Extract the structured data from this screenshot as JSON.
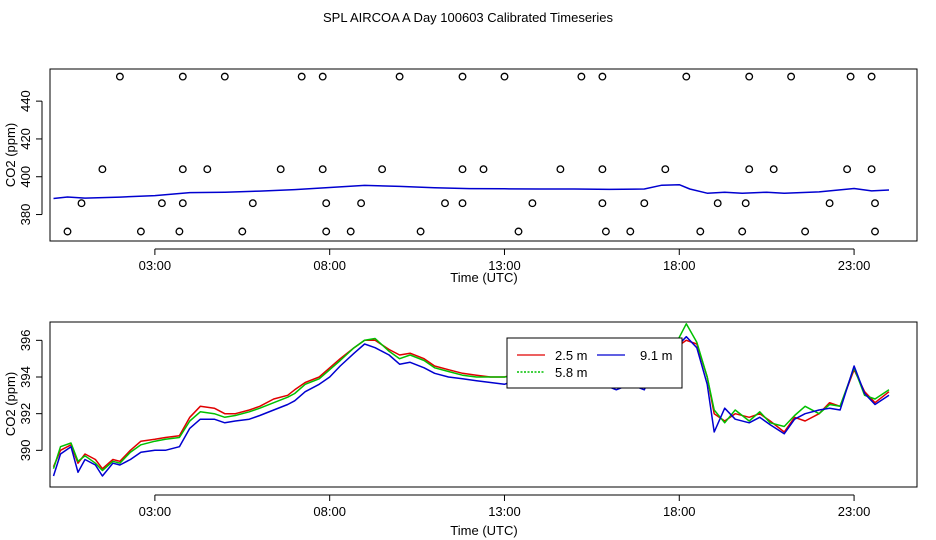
{
  "title": "SPL AIRCOA A  Day 100603  Calibrated Timeseries",
  "colors": {
    "red": "#e00000",
    "green": "#00c000",
    "blue": "#0000d0",
    "axis": "#000000"
  },
  "chart_data": [
    {
      "type": "line",
      "xlabel": "Time (UTC)",
      "ylabel": "CO2 (ppm)",
      "xlim": [
        0.0,
        24.8
      ],
      "ylim": [
        366,
        457
      ],
      "x_ticks": [
        3,
        8,
        13,
        18,
        23
      ],
      "x_tick_labels": [
        "03:00",
        "08:00",
        "13:00",
        "18:00",
        "23:00"
      ],
      "y_ticks": [
        380,
        400,
        420,
        440
      ],
      "y_tick_labels": [
        "380",
        "400",
        "420",
        "440"
      ],
      "series": [
        {
          "color": "blue",
          "x": [
            0.1,
            0.5,
            1.0,
            2.0,
            3.0,
            4.0,
            5.0,
            6.0,
            7.0,
            8.0,
            9.0,
            10.0,
            11.0,
            12.0,
            13.0,
            14.0,
            15.0,
            16.0,
            17.0,
            17.5,
            18.0,
            18.3,
            18.8,
            19.3,
            19.8,
            20.5,
            21.0,
            22.0,
            23.0,
            23.5,
            24.0
          ],
          "y": [
            388.5,
            389.3,
            388.7,
            389.2,
            390.0,
            391.6,
            391.8,
            392.4,
            393.2,
            394.3,
            395.4,
            394.9,
            394.2,
            393.7,
            393.6,
            393.5,
            393.5,
            393.3,
            393.5,
            395.5,
            395.8,
            393.5,
            391.3,
            391.8,
            391.3,
            391.8,
            391.3,
            392.0,
            393.8,
            392.5,
            393.0
          ]
        }
      ],
      "markers": {
        "symbol": "open-circle",
        "x": [
          2.0,
          3.8,
          5.0,
          7.2,
          7.8,
          10.0,
          11.8,
          13.0,
          15.2,
          15.8,
          18.2,
          20.0,
          21.2,
          22.9,
          23.5,
          1.5,
          3.8,
          4.5,
          6.6,
          7.8,
          9.5,
          11.8,
          12.4,
          14.6,
          15.8,
          17.6,
          20.0,
          20.7,
          22.8,
          23.5,
          0.9,
          3.2,
          3.8,
          5.8,
          7.9,
          8.9,
          11.3,
          11.8,
          13.8,
          15.8,
          17.0,
          19.1,
          19.9,
          22.3,
          23.6,
          0.5,
          2.6,
          3.7,
          5.5,
          7.9,
          8.6,
          10.6,
          13.4,
          15.9,
          16.6,
          18.6,
          19.8,
          21.6,
          23.6
        ],
        "y": [
          453,
          453,
          453,
          453,
          453,
          453,
          453,
          453,
          453,
          453,
          453,
          453,
          453,
          453,
          453,
          404,
          404,
          404,
          404,
          404,
          404,
          404,
          404,
          404,
          404,
          404,
          404,
          404,
          404,
          404,
          386,
          386,
          386,
          386,
          386,
          386,
          386,
          386,
          386,
          386,
          386,
          386,
          386,
          386,
          386,
          371,
          371,
          371,
          371,
          371,
          371,
          371,
          371,
          371,
          371,
          371,
          371,
          371,
          371
        ]
      }
    },
    {
      "type": "line",
      "xlabel": "Time (UTC)",
      "ylabel": "CO2 (ppm)",
      "xlim": [
        0.0,
        24.8
      ],
      "ylim": [
        388.0,
        397.0
      ],
      "x_ticks": [
        3,
        8,
        13,
        18,
        23
      ],
      "x_tick_labels": [
        "03:00",
        "08:00",
        "13:00",
        "18:00",
        "23:00"
      ],
      "y_ticks": [
        390,
        392,
        394,
        396
      ],
      "y_tick_labels": [
        "390",
        "392",
        "394",
        "396"
      ],
      "legend": {
        "position": "top-right-of-center",
        "entries": [
          {
            "label": "2.5 m",
            "color": "red",
            "dash": "solid"
          },
          {
            "label": "9.1 m",
            "color": "blue",
            "dash": "solid"
          },
          {
            "label": "5.8 m",
            "color": "green",
            "dash": "dotted"
          }
        ]
      },
      "series": [
        {
          "name": "2.5 m",
          "color": "red",
          "x": [
            0.1,
            0.3,
            0.6,
            0.8,
            1.0,
            1.3,
            1.5,
            1.8,
            2.0,
            2.3,
            2.6,
            3.0,
            3.3,
            3.7,
            4.0,
            4.3,
            4.7,
            5.0,
            5.3,
            5.7,
            6.0,
            6.4,
            6.8,
            7.0,
            7.3,
            7.7,
            8.0,
            8.3,
            8.7,
            9.0,
            9.3,
            9.7,
            10.0,
            10.3,
            10.7,
            11.0,
            11.4,
            11.8,
            12.2,
            12.6,
            13.0,
            13.4,
            13.8,
            14.2,
            14.6,
            15.0,
            15.4,
            15.8,
            16.2,
            16.6,
            17.0,
            17.3,
            17.6,
            17.9,
            18.2,
            18.5,
            18.8,
            19.0,
            19.3,
            19.6,
            20.0,
            20.3,
            20.6,
            21.0,
            21.3,
            21.6,
            22.0,
            22.3,
            22.6,
            23.0,
            23.3,
            23.6,
            24.0
          ],
          "y": [
            389.1,
            390.0,
            390.3,
            389.3,
            389.8,
            389.5,
            389.0,
            389.5,
            389.4,
            390.0,
            390.5,
            390.6,
            390.7,
            390.8,
            391.8,
            392.4,
            392.3,
            392.0,
            392.0,
            392.2,
            392.4,
            392.8,
            393.0,
            393.3,
            393.7,
            394.0,
            394.5,
            395.0,
            395.6,
            396.0,
            396.0,
            395.5,
            395.2,
            395.3,
            395.0,
            394.6,
            394.4,
            394.2,
            394.1,
            394.0,
            394.0,
            394.2,
            393.9,
            393.8,
            393.7,
            393.8,
            393.6,
            393.6,
            393.5,
            393.7,
            393.6,
            395.0,
            395.3,
            395.6,
            396.0,
            395.8,
            394.0,
            392.0,
            391.6,
            392.0,
            391.8,
            392.0,
            391.6,
            391.0,
            391.8,
            391.6,
            392.0,
            392.6,
            392.4,
            394.4,
            393.2,
            392.6,
            393.2
          ]
        },
        {
          "name": "5.8 m",
          "color": "green",
          "x": [
            0.1,
            0.3,
            0.6,
            0.8,
            1.0,
            1.3,
            1.5,
            1.8,
            2.0,
            2.3,
            2.6,
            3.0,
            3.3,
            3.7,
            4.0,
            4.3,
            4.7,
            5.0,
            5.3,
            5.7,
            6.0,
            6.4,
            6.8,
            7.0,
            7.3,
            7.7,
            8.0,
            8.3,
            8.7,
            9.0,
            9.3,
            9.7,
            10.0,
            10.3,
            10.7,
            11.0,
            11.4,
            11.8,
            12.2,
            12.6,
            13.0,
            13.4,
            13.8,
            14.2,
            14.6,
            15.0,
            15.4,
            15.8,
            16.2,
            16.6,
            17.0,
            17.3,
            17.6,
            17.9,
            18.2,
            18.5,
            18.8,
            19.0,
            19.3,
            19.6,
            20.0,
            20.3,
            20.6,
            21.0,
            21.3,
            21.6,
            22.0,
            22.3,
            22.6,
            23.0,
            23.3,
            23.6,
            24.0
          ],
          "y": [
            389.0,
            390.2,
            390.4,
            389.4,
            389.7,
            389.3,
            388.9,
            389.4,
            389.3,
            389.9,
            390.3,
            390.5,
            390.6,
            390.7,
            391.6,
            392.1,
            392.0,
            391.8,
            391.9,
            392.1,
            392.3,
            392.6,
            392.9,
            393.1,
            393.6,
            393.9,
            394.4,
            394.9,
            395.6,
            396.0,
            396.1,
            395.4,
            395.0,
            395.2,
            394.9,
            394.5,
            394.3,
            394.1,
            394.0,
            394.0,
            394.0,
            394.1,
            393.8,
            393.7,
            393.6,
            393.7,
            393.6,
            393.7,
            393.5,
            393.6,
            393.6,
            394.8,
            395.2,
            395.8,
            396.9,
            395.9,
            394.0,
            392.2,
            391.5,
            392.2,
            391.6,
            392.1,
            391.5,
            391.3,
            391.9,
            392.4,
            392.0,
            392.5,
            392.4,
            394.5,
            393.0,
            392.8,
            393.3
          ]
        },
        {
          "name": "9.1 m",
          "color": "blue",
          "x": [
            0.1,
            0.3,
            0.6,
            0.8,
            1.0,
            1.3,
            1.5,
            1.8,
            2.0,
            2.3,
            2.6,
            3.0,
            3.3,
            3.7,
            4.0,
            4.3,
            4.7,
            5.0,
            5.3,
            5.7,
            6.0,
            6.4,
            6.8,
            7.0,
            7.3,
            7.7,
            8.0,
            8.3,
            8.7,
            9.0,
            9.3,
            9.7,
            10.0,
            10.3,
            10.7,
            11.0,
            11.4,
            11.8,
            12.2,
            12.6,
            13.0,
            13.4,
            13.8,
            14.2,
            14.6,
            15.0,
            15.4,
            15.8,
            16.2,
            16.6,
            17.0,
            17.3,
            17.6,
            17.9,
            18.2,
            18.5,
            18.8,
            19.0,
            19.3,
            19.6,
            20.0,
            20.3,
            20.6,
            21.0,
            21.3,
            21.6,
            22.0,
            22.3,
            22.6,
            23.0,
            23.3,
            23.6,
            24.0
          ],
          "y": [
            388.6,
            389.8,
            390.2,
            388.8,
            389.5,
            389.2,
            388.6,
            389.3,
            389.2,
            389.5,
            389.9,
            390.0,
            390.0,
            390.2,
            391.2,
            391.7,
            391.7,
            391.5,
            391.6,
            391.7,
            391.9,
            392.2,
            392.5,
            392.7,
            393.2,
            393.6,
            394.0,
            394.6,
            395.3,
            395.8,
            395.6,
            395.2,
            394.7,
            394.8,
            394.5,
            394.2,
            394.0,
            393.9,
            393.8,
            393.7,
            393.6,
            393.9,
            393.6,
            393.5,
            393.5,
            393.6,
            393.5,
            393.6,
            393.3,
            393.6,
            393.3,
            394.6,
            395.0,
            395.6,
            396.2,
            395.6,
            393.6,
            391.0,
            392.3,
            391.7,
            391.5,
            391.8,
            391.4,
            390.9,
            391.7,
            392.0,
            392.2,
            392.3,
            392.2,
            394.6,
            393.1,
            392.5,
            393.0
          ]
        }
      ]
    }
  ]
}
